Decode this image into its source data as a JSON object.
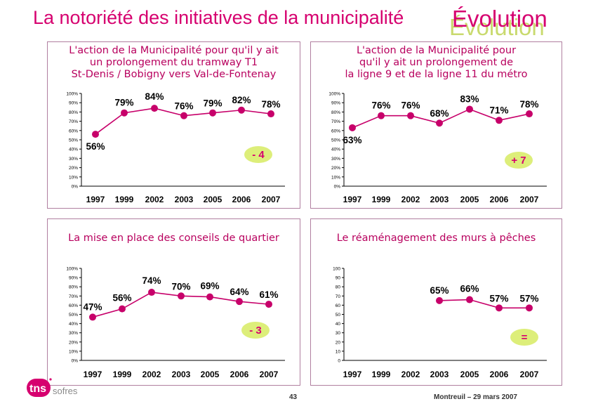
{
  "title": "La notoriété des initiatives de la municipalité",
  "badge": "Évolution",
  "footer": {
    "page": "43",
    "location_date": "Montreuil – 29 mars 2007",
    "logo_text": "tns sofres"
  },
  "colors": {
    "accent": "#d6006f",
    "line": "#c7006a",
    "delta_bg": "#ddee7a",
    "delta_text": "#d6006f"
  },
  "chart_data": [
    {
      "type": "line",
      "title_lines": [
        "L'action de la Municipalité pour qu'il y ait",
        "un prolongement du tramway T1",
        "St-Denis / Bobigny vers Val-de-Fontenay"
      ],
      "categories": [
        "1997",
        "1999",
        "2002",
        "2003",
        "2005",
        "2006",
        "2007"
      ],
      "values": [
        56,
        79,
        84,
        76,
        79,
        82,
        78
      ],
      "labels": [
        "56%",
        "79%",
        "84%",
        "76%",
        "79%",
        "82%",
        "78%"
      ],
      "ylim": [
        0,
        100
      ],
      "yticks": [
        "0%",
        "10%",
        "20%",
        "30%",
        "40%",
        "50%",
        "60%",
        "70%",
        "80%",
        "90%",
        "100%"
      ],
      "delta": "- 4"
    },
    {
      "type": "line",
      "title_lines": [
        "L'action de la Municipalité pour",
        "qu'il y ait un prolongement de",
        "la ligne 9 et de la ligne 11 du métro"
      ],
      "categories": [
        "1997",
        "1999",
        "2002",
        "2003",
        "2005",
        "2006",
        "2007"
      ],
      "values": [
        63,
        76,
        76,
        68,
        83,
        71,
        78
      ],
      "labels": [
        "63%",
        "76%",
        "76%",
        "68%",
        "83%",
        "71%",
        "78%"
      ],
      "ylim": [
        0,
        100
      ],
      "yticks": [
        "0%",
        "10%",
        "20%",
        "30%",
        "40%",
        "50%",
        "60%",
        "70%",
        "80%",
        "90%",
        "100%"
      ],
      "delta": "+ 7"
    },
    {
      "type": "line",
      "title_lines": [
        "La mise en place des conseils de quartier"
      ],
      "categories": [
        "1997",
        "1999",
        "2002",
        "2003",
        "2005",
        "2006",
        "2007"
      ],
      "values": [
        47,
        56,
        74,
        70,
        69,
        64,
        61
      ],
      "labels": [
        "47%",
        "56%",
        "74%",
        "70%",
        "69%",
        "64%",
        "61%"
      ],
      "ylim": [
        0,
        100
      ],
      "yticks": [
        "0%",
        "10%",
        "20%",
        "30%",
        "40%",
        "50%",
        "60%",
        "70%",
        "80%",
        "90%",
        "100%"
      ],
      "delta": "- 3"
    },
    {
      "type": "line",
      "title_lines": [
        "Le réaménagement des murs à pêches"
      ],
      "categories": [
        "1997",
        "1999",
        "2002",
        "2003",
        "2005",
        "2006",
        "2007"
      ],
      "values": [
        null,
        null,
        null,
        65,
        66,
        57,
        57
      ],
      "labels": [
        null,
        null,
        null,
        "65%",
        "66%",
        "57%",
        "57%"
      ],
      "ylim": [
        0,
        100
      ],
      "yticks": [
        "0",
        "10",
        "20",
        "30",
        "40",
        "50",
        "60",
        "70",
        "80",
        "90",
        "100"
      ],
      "delta": "="
    }
  ]
}
